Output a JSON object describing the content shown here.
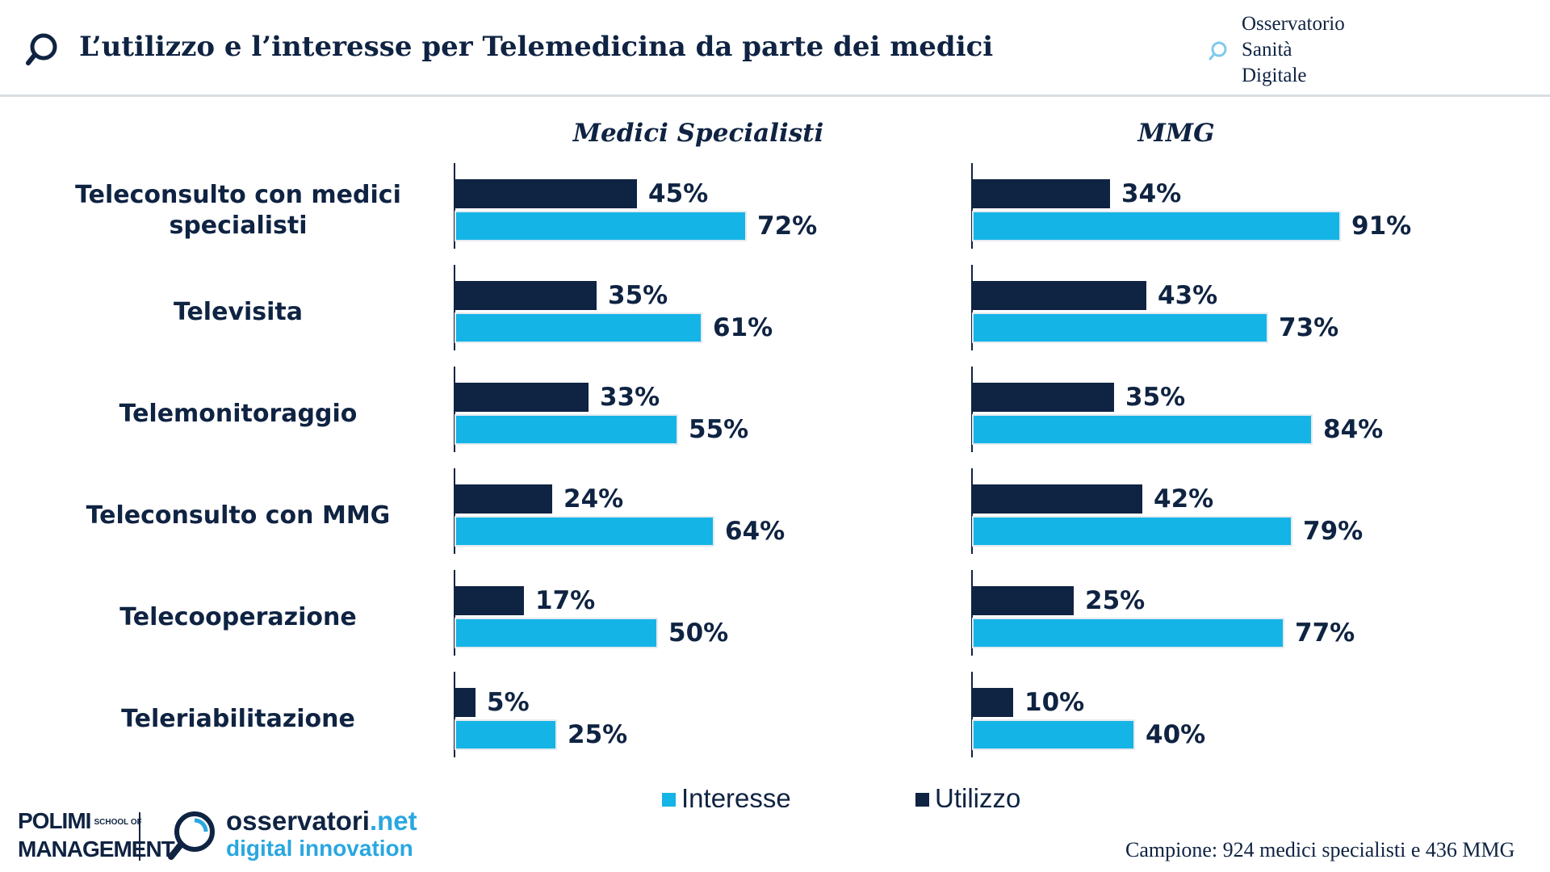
{
  "header": {
    "title": "L’utilizzo e l’interesse per Telemedicina da parte dei medici",
    "brand_lines": [
      "Osservatorio",
      "Sanità",
      "Digitale"
    ]
  },
  "chart_data": {
    "type": "bar",
    "orientation": "horizontal",
    "categories": [
      "Teleconsulto con medici specialisti",
      "Televisita",
      "Telemonitoraggio",
      "Teleconsulto con MMG",
      "Telecooperazione",
      "Teleriabilitazione"
    ],
    "category_lines": [
      [
        "Teleconsulto con medici",
        "specialisti"
      ],
      [
        "Televisita"
      ],
      [
        "Telemonitoraggio"
      ],
      [
        "Teleconsulto con MMG"
      ],
      [
        "Telecooperazione"
      ],
      [
        "Teleriabilitazione"
      ]
    ],
    "unit": "%",
    "xlim": [
      0,
      100
    ],
    "legend": {
      "placement": "bottom",
      "entries": [
        "Interesse",
        "Utilizzo"
      ]
    },
    "colors": {
      "Utilizzo": "#0f2342",
      "Interesse": "#14b4e6"
    },
    "panels": [
      {
        "title": "Medici Specialisti",
        "series": [
          {
            "name": "Utilizzo",
            "values": [
              45,
              35,
              33,
              24,
              17,
              5
            ]
          },
          {
            "name": "Interesse",
            "values": [
              72,
              61,
              55,
              64,
              50,
              25
            ]
          }
        ]
      },
      {
        "title": "MMG",
        "series": [
          {
            "name": "Utilizzo",
            "values": [
              34,
              43,
              35,
              42,
              25,
              10
            ]
          },
          {
            "name": "Interesse",
            "values": [
              91,
              73,
              84,
              79,
              77,
              40
            ]
          }
        ]
      }
    ]
  },
  "footer": {
    "polimi_line1": "POLIMI",
    "polimi_small": "SCHOOL OF",
    "polimi_line2": "MANAGEMENT",
    "osservatori_name": "osservatori",
    "osservatori_tld": ".net",
    "osservatori_tagline": "digital innovation",
    "campione": "Campione: 924 medici specialisti e 436 MMG"
  }
}
